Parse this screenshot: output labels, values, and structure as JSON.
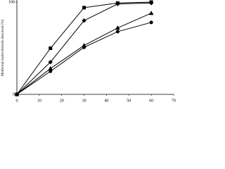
{
  "chart_data": {
    "type": "line",
    "y_label": "Metformin hydrochloride dissolved (%)",
    "x": [
      0,
      15,
      30,
      45,
      60
    ],
    "series": [
      {
        "marker": "square",
        "color": "#000000",
        "values": [
          0,
          50,
          94,
          99,
          100
        ]
      },
      {
        "marker": "diamond",
        "color": "#000000",
        "values": [
          0,
          35,
          80,
          98,
          99
        ]
      },
      {
        "marker": "triangle",
        "color": "#000000",
        "values": [
          0,
          28,
          53,
          72,
          88
        ]
      },
      {
        "marker": "circle",
        "color": "#000000",
        "values": [
          0,
          25,
          51,
          68,
          78
        ]
      }
    ],
    "xlim": [
      0,
      70
    ],
    "xticks": [
      0,
      10,
      20,
      30,
      40,
      50,
      60,
      70
    ],
    "ylim": [
      0,
      100
    ],
    "yticks": [
      0,
      100
    ]
  }
}
